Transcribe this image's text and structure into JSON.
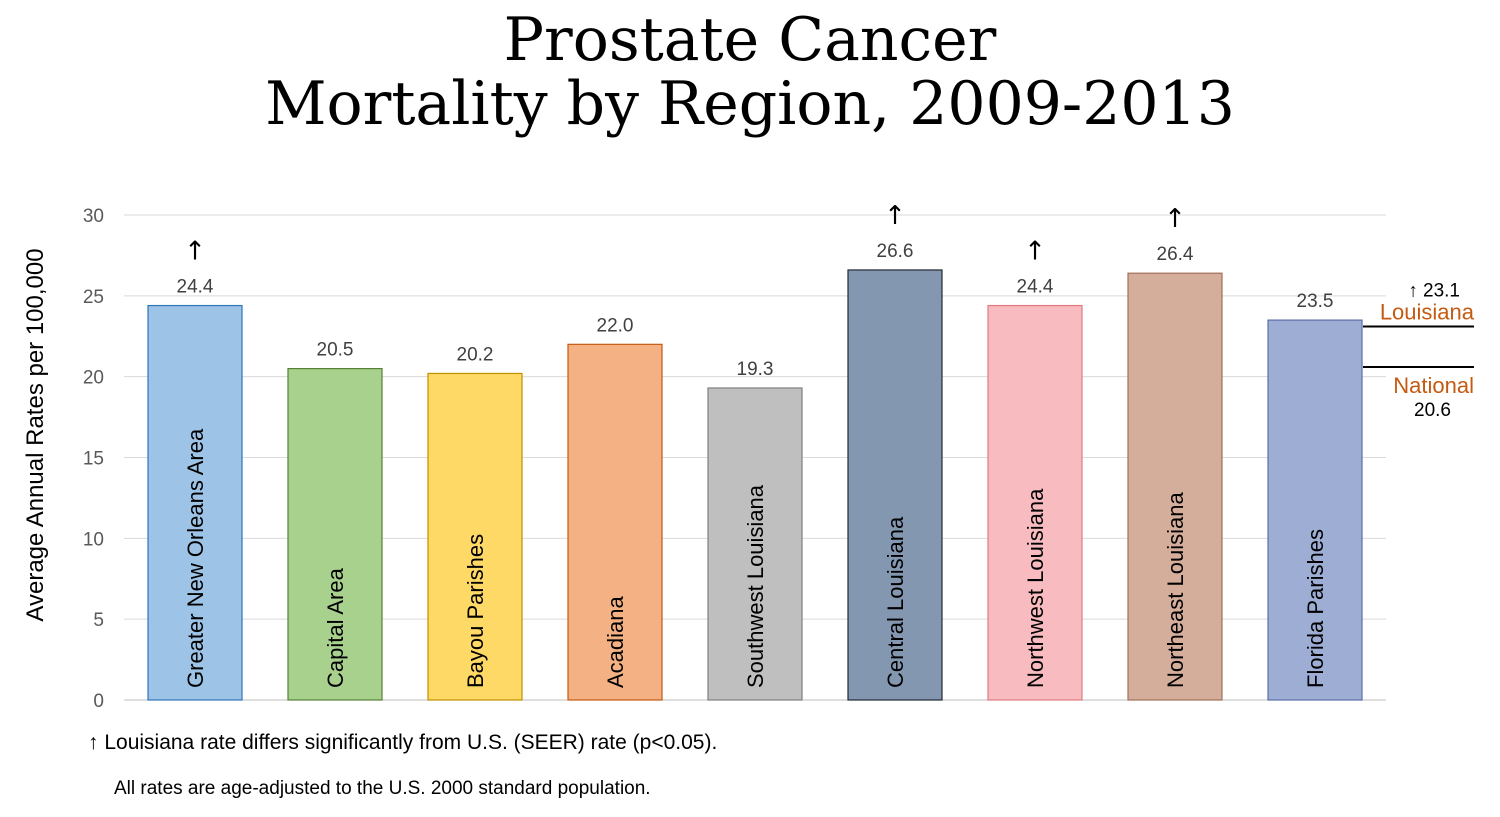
{
  "title_line1": "Prostate Cancer",
  "title_line2": "Mortality by Region, 2009-2013",
  "chart_data": {
    "type": "bar",
    "ylabel": "Average Annual Rates per 100,000",
    "ylim": [
      0,
      30
    ],
    "yticks": [
      0,
      5,
      10,
      15,
      20,
      25,
      30
    ],
    "grid": true,
    "categories": [
      "Greater New Orleans Area",
      "Capital Area",
      "Bayou Parishes",
      "Acadiana",
      "Southwest Louisiana",
      "Central Louisiana",
      "Northwest Louisiana",
      "Northeast Louisiana",
      "Florida Parishes"
    ],
    "values": [
      24.4,
      20.5,
      20.2,
      22.0,
      19.3,
      26.6,
      24.4,
      26.4,
      23.5
    ],
    "value_labels": [
      "24.4",
      "20.5",
      "20.2",
      "22.0",
      "19.3",
      "26.6",
      "24.4",
      "26.4",
      "23.5"
    ],
    "significant": [
      true,
      false,
      false,
      false,
      false,
      true,
      true,
      true,
      false
    ],
    "colors": [
      "#9dc3e6",
      "#a9d18e",
      "#ffd966",
      "#f4b183",
      "#bfbfbf",
      "#8497b0",
      "#f8bbbf",
      "#d5ae9b",
      "#9dadd4"
    ],
    "border_colors": [
      "#2e75b6",
      "#548235",
      "#bf9000",
      "#c55a11",
      "#7f7f7f",
      "#222a35",
      "#e07a80",
      "#a0705a",
      "#5b6fa8"
    ],
    "reference_lines": [
      {
        "name": "Louisiana",
        "value": 23.1,
        "label": "23.1",
        "prefix": "↑",
        "color": "#c55a11"
      },
      {
        "name": "National",
        "value": 20.6,
        "label": "20.6",
        "color": "#c55a11"
      }
    ],
    "significance_marker": "↑"
  },
  "footnote": "↑ Louisiana rate differs significantly from U.S. (SEER) rate (p<0.05).",
  "footnote2": "All rates are age-adjusted to the U.S. 2000 standard population."
}
